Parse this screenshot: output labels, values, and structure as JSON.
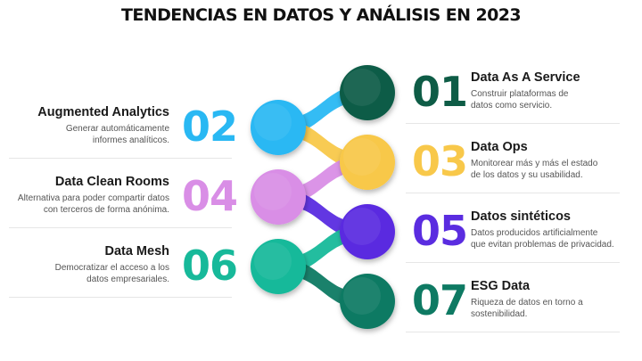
{
  "title": "TENDENCIAS EN DATOS Y ANÁLISIS EN 2023",
  "items": [
    {
      "number": "01",
      "title": "Data As A Service",
      "lines": [
        "Construir plataformas de",
        "datos como servicio."
      ],
      "side": "right",
      "color": "#0e5c46"
    },
    {
      "number": "02",
      "title": "Augmented Analytics",
      "lines": [
        "Generar automáticamente",
        "informes analíticos."
      ],
      "side": "left",
      "color": "#29b8f3"
    },
    {
      "number": "03",
      "title": "Data Ops",
      "lines": [
        "Monitorear más y más el estado",
        "de los datos y su usabilidad."
      ],
      "side": "right",
      "color": "#f8c84a"
    },
    {
      "number": "04",
      "title": "Data Clean Rooms",
      "lines": [
        "Alternativa para poder compartir datos",
        "con terceros de forma anónima."
      ],
      "side": "left",
      "color": "#d98ee6"
    },
    {
      "number": "05",
      "title": "Datos sintéticos",
      "lines": [
        "Datos producidos artificialmente",
        "que evitan problemas de privacidad."
      ],
      "side": "right",
      "color": "#5a2ce0"
    },
    {
      "number": "06",
      "title": "Data Mesh",
      "lines": [
        "Democratizar el acceso a los",
        "datos empresariales."
      ],
      "side": "left",
      "color": "#17b99a"
    },
    {
      "number": "07",
      "title": "ESG Data",
      "lines": [
        "Riqueza de datos en torno a",
        "sostenibilidad."
      ],
      "side": "right",
      "color": "#0e7a63"
    }
  ]
}
